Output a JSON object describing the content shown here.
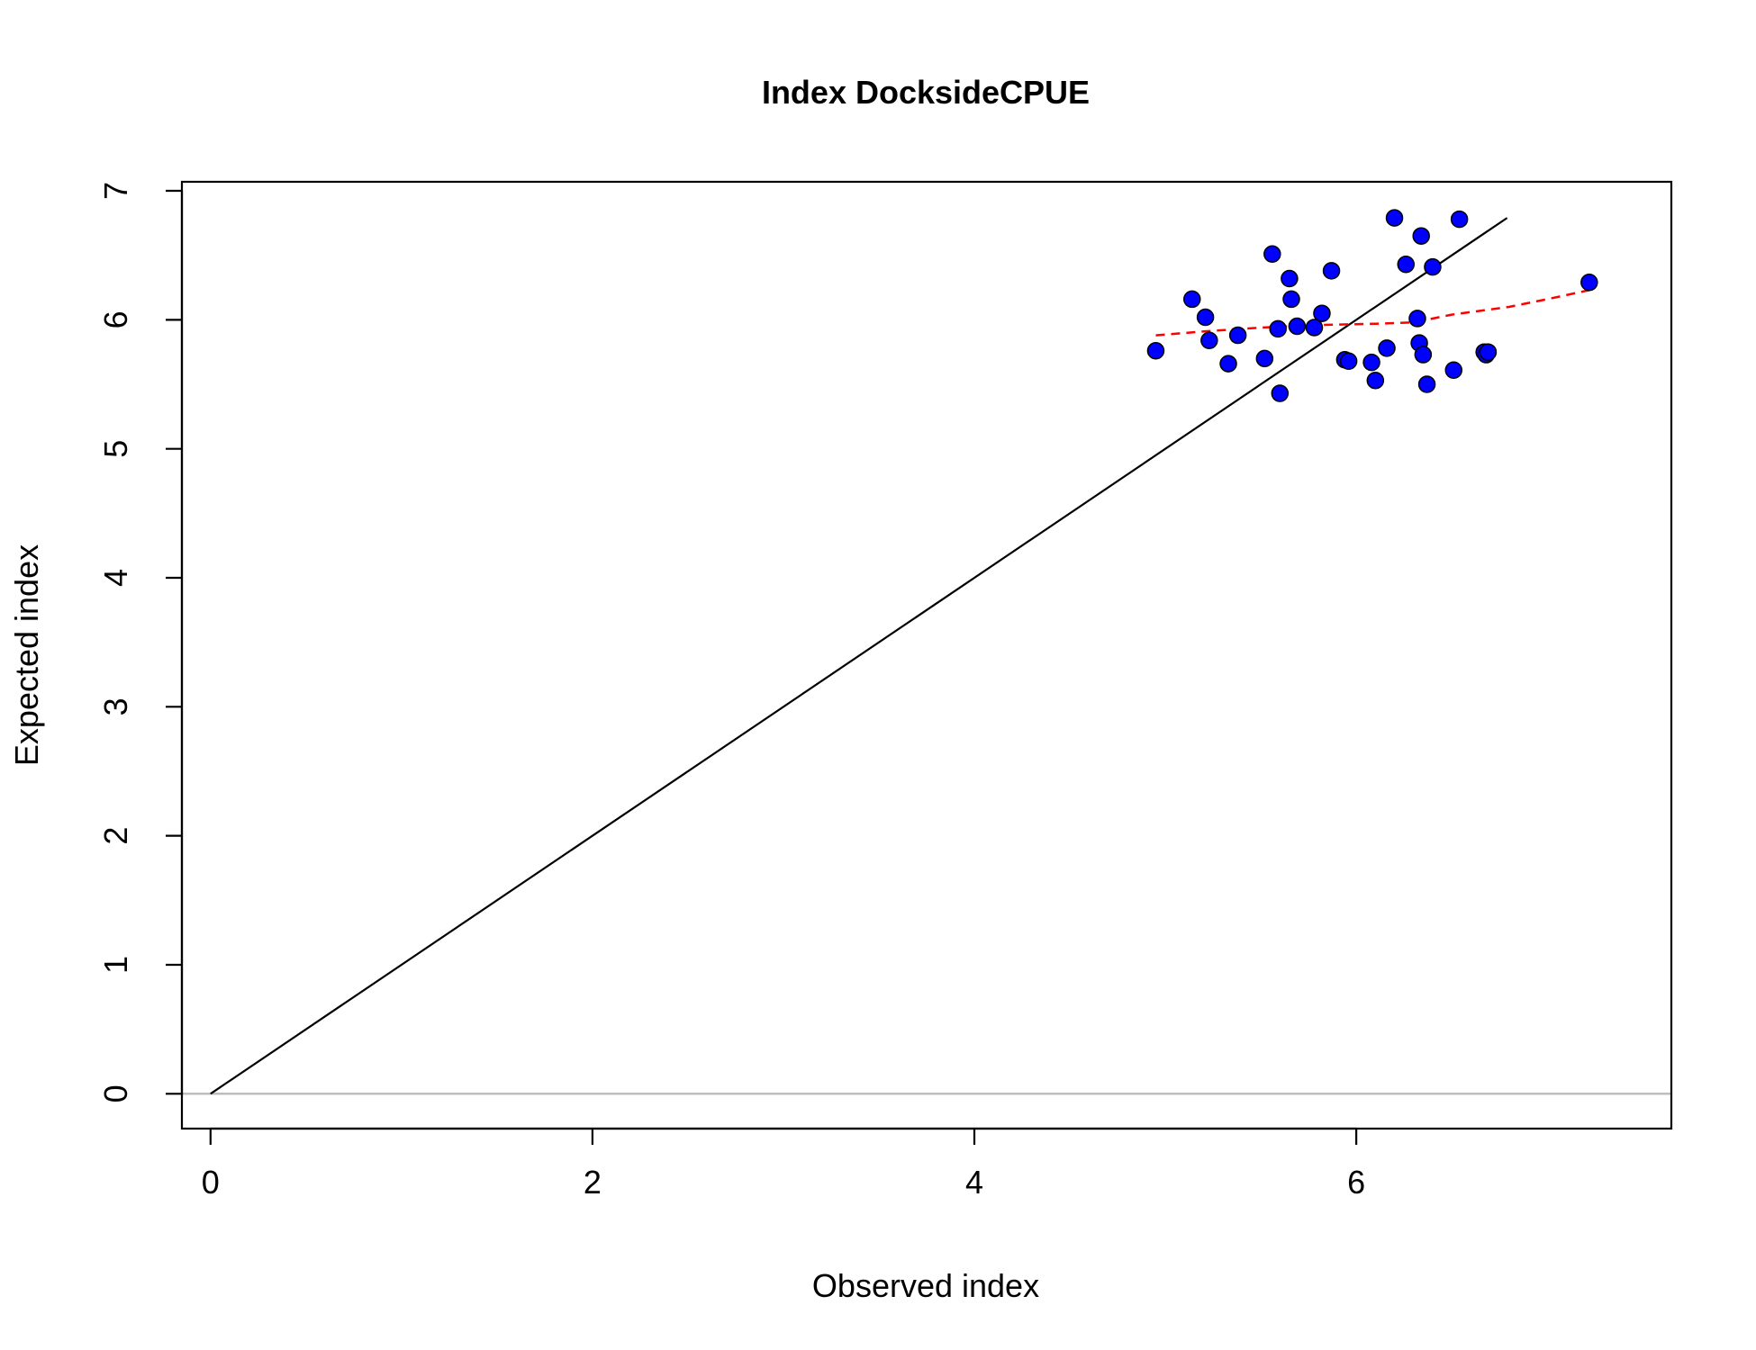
{
  "chart_data": {
    "type": "scatter",
    "title": "Index DocksideCPUE",
    "xlabel": "Observed index",
    "ylabel": "Expected index",
    "xlim": [
      -0.15,
      7.65
    ],
    "ylim": [
      -0.27,
      7.07
    ],
    "x_ticks": [
      0,
      2,
      4,
      6
    ],
    "y_ticks": [
      0,
      1,
      2,
      3,
      4,
      5,
      6,
      7
    ],
    "x_tick_labels": [
      "0",
      "2",
      "4",
      "6"
    ],
    "y_tick_labels": [
      "0",
      "1",
      "2",
      "3",
      "4",
      "5",
      "6",
      "7"
    ],
    "grid": false,
    "legend": "none",
    "colors": {
      "points_fill": "#0000ff",
      "points_stroke": "#000000",
      "identity_line": "#000000",
      "smoother": "#ff0000",
      "zero_line": "#bebebe",
      "frame": "#000000"
    },
    "identity_line": {
      "x": [
        0,
        6.79
      ],
      "y": [
        0,
        6.79
      ]
    },
    "zero_line_y": 0,
    "points": {
      "x": [
        4.95,
        5.14,
        5.21,
        5.23,
        5.33,
        5.38,
        5.52,
        5.56,
        5.59,
        5.6,
        5.65,
        5.66,
        5.69,
        5.78,
        5.82,
        5.87,
        5.94,
        5.96,
        6.08,
        6.1,
        6.16,
        6.2,
        6.26,
        6.32,
        6.33,
        6.34,
        6.35,
        6.37,
        6.4,
        6.51,
        6.54,
        6.67,
        6.68,
        6.69,
        7.22
      ],
      "y": [
        5.76,
        6.16,
        6.02,
        5.84,
        5.66,
        5.88,
        5.7,
        6.51,
        5.93,
        5.43,
        6.32,
        6.16,
        5.95,
        5.94,
        6.05,
        6.38,
        5.69,
        5.68,
        5.67,
        5.53,
        5.78,
        6.79,
        6.43,
        6.01,
        5.82,
        6.65,
        5.73,
        5.5,
        6.41,
        5.61,
        6.78,
        5.75,
        5.73,
        5.75,
        6.29
      ]
    },
    "smoother": {
      "x": [
        4.95,
        5.2,
        5.5,
        5.8,
        6.1,
        6.3,
        6.5,
        6.8,
        7.0,
        7.22
      ],
      "y": [
        5.88,
        5.91,
        5.94,
        5.96,
        5.97,
        5.98,
        6.04,
        6.1,
        6.16,
        6.23
      ]
    }
  }
}
